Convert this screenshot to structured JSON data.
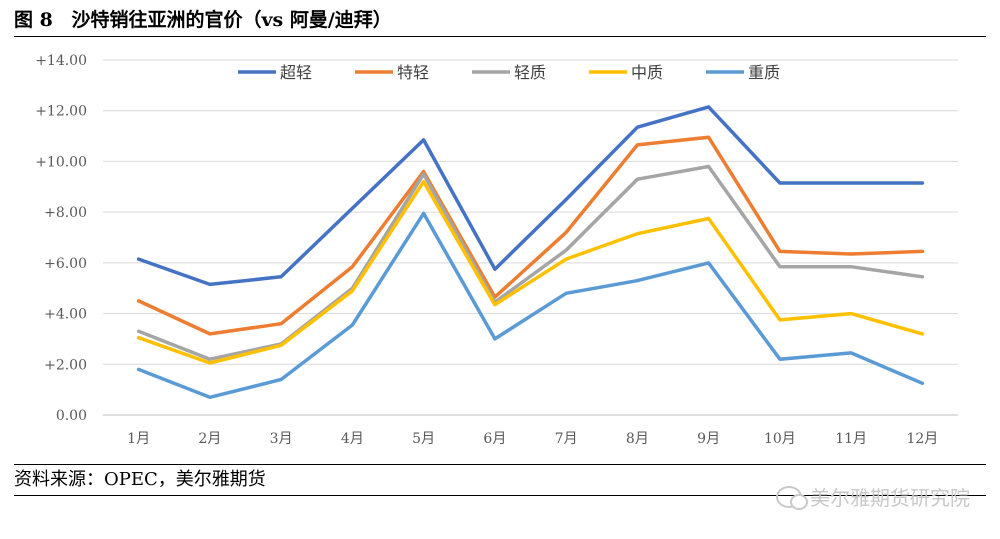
{
  "header": {
    "fig_num": "图 8",
    "title": "沙特销往亚洲的官价（vs 阿曼/迪拜）"
  },
  "footer": {
    "source": "资料来源：OPEC，美尔雅期货"
  },
  "watermark": {
    "text": "美尔雅期货研究院"
  },
  "chart_data": {
    "type": "line",
    "categories": [
      "1月",
      "2月",
      "3月",
      "4月",
      "5月",
      "6月",
      "7月",
      "8月",
      "9月",
      "10月",
      "11月",
      "12月"
    ],
    "y_tick_labels": [
      "0.00",
      "+2.00",
      "+4.00",
      "+6.00",
      "+8.00",
      "+10.00",
      "+12.00",
      "+14.00"
    ],
    "ylim": [
      0,
      14
    ],
    "grid": true,
    "legend_position": "top",
    "series": [
      {
        "name": "超轻",
        "color": "#4472C4",
        "values": [
          6.15,
          5.15,
          5.45,
          8.15,
          10.85,
          5.75,
          8.5,
          11.35,
          12.15,
          9.15,
          9.15,
          9.15
        ]
      },
      {
        "name": "特轻",
        "color": "#ED7D31",
        "values": [
          4.5,
          3.2,
          3.6,
          5.85,
          9.6,
          4.65,
          7.2,
          10.65,
          10.95,
          6.45,
          6.35,
          6.45
        ]
      },
      {
        "name": "轻质",
        "color": "#A5A5A5",
        "values": [
          3.3,
          2.2,
          2.8,
          5.0,
          9.5,
          4.45,
          6.5,
          9.3,
          9.8,
          5.85,
          5.85,
          5.45
        ]
      },
      {
        "name": "中质",
        "color": "#FFC000",
        "values": [
          3.05,
          2.05,
          2.75,
          4.9,
          9.2,
          4.35,
          6.15,
          7.15,
          7.75,
          3.75,
          4.0,
          3.2
        ]
      },
      {
        "name": "重质",
        "color": "#5B9BD5",
        "values": [
          1.8,
          0.7,
          1.4,
          3.55,
          7.95,
          3.0,
          4.8,
          5.3,
          6.0,
          2.2,
          2.45,
          1.25
        ]
      }
    ]
  }
}
